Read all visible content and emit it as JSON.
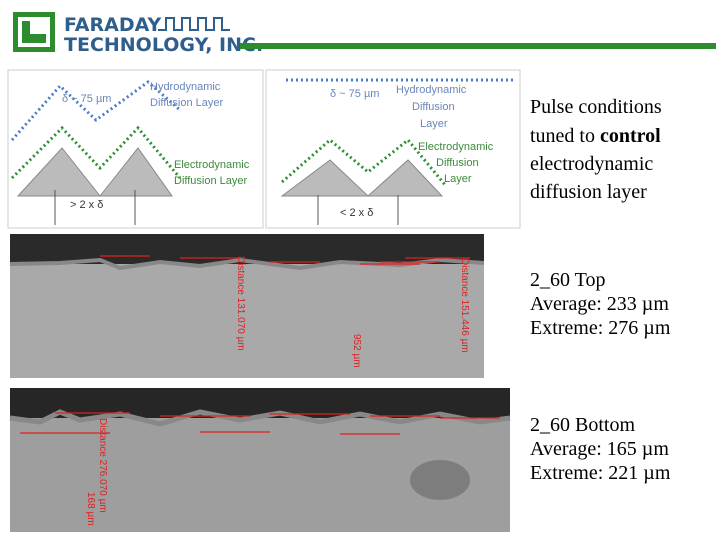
{
  "header": {
    "logo_top": "FARADAY",
    "logo_bottom": "TECHNOLOGY, INC."
  },
  "diagrams": [
    {
      "delta": "δ ~ 75 µm",
      "hydro": [
        "Hydrodynamic",
        "Diffusion Layer"
      ],
      "electro": [
        "Electrodynamic",
        "Diffusion Layer"
      ],
      "spacing": "> 2 x δ"
    },
    {
      "delta": "δ ~ 75 µm",
      "hydro": [
        "Hydrodynamic",
        "Diffusion",
        "Layer"
      ],
      "electro": [
        "Electrodynamic",
        "Diffusion",
        "Layer"
      ],
      "spacing": "< 2 x δ"
    }
  ],
  "caption": {
    "lines": [
      "Pulse conditions",
      "tuned to ",
      "control",
      "electrodynamic",
      "diffusion layer"
    ]
  },
  "samples": [
    {
      "title": "2_60 Top",
      "average": "Average: 233 µm",
      "extreme": "Extreme: 276 µm",
      "annotations": [
        "Distance 131.070 µm",
        "952 µm",
        "Distance 151.446 µm"
      ]
    },
    {
      "title": "2_60 Bottom",
      "average": "Average: 165 µm",
      "extreme": "Extreme: 221 µm",
      "annotations": [
        "Distance 276.070 µm",
        "168 µm"
      ]
    }
  ]
}
